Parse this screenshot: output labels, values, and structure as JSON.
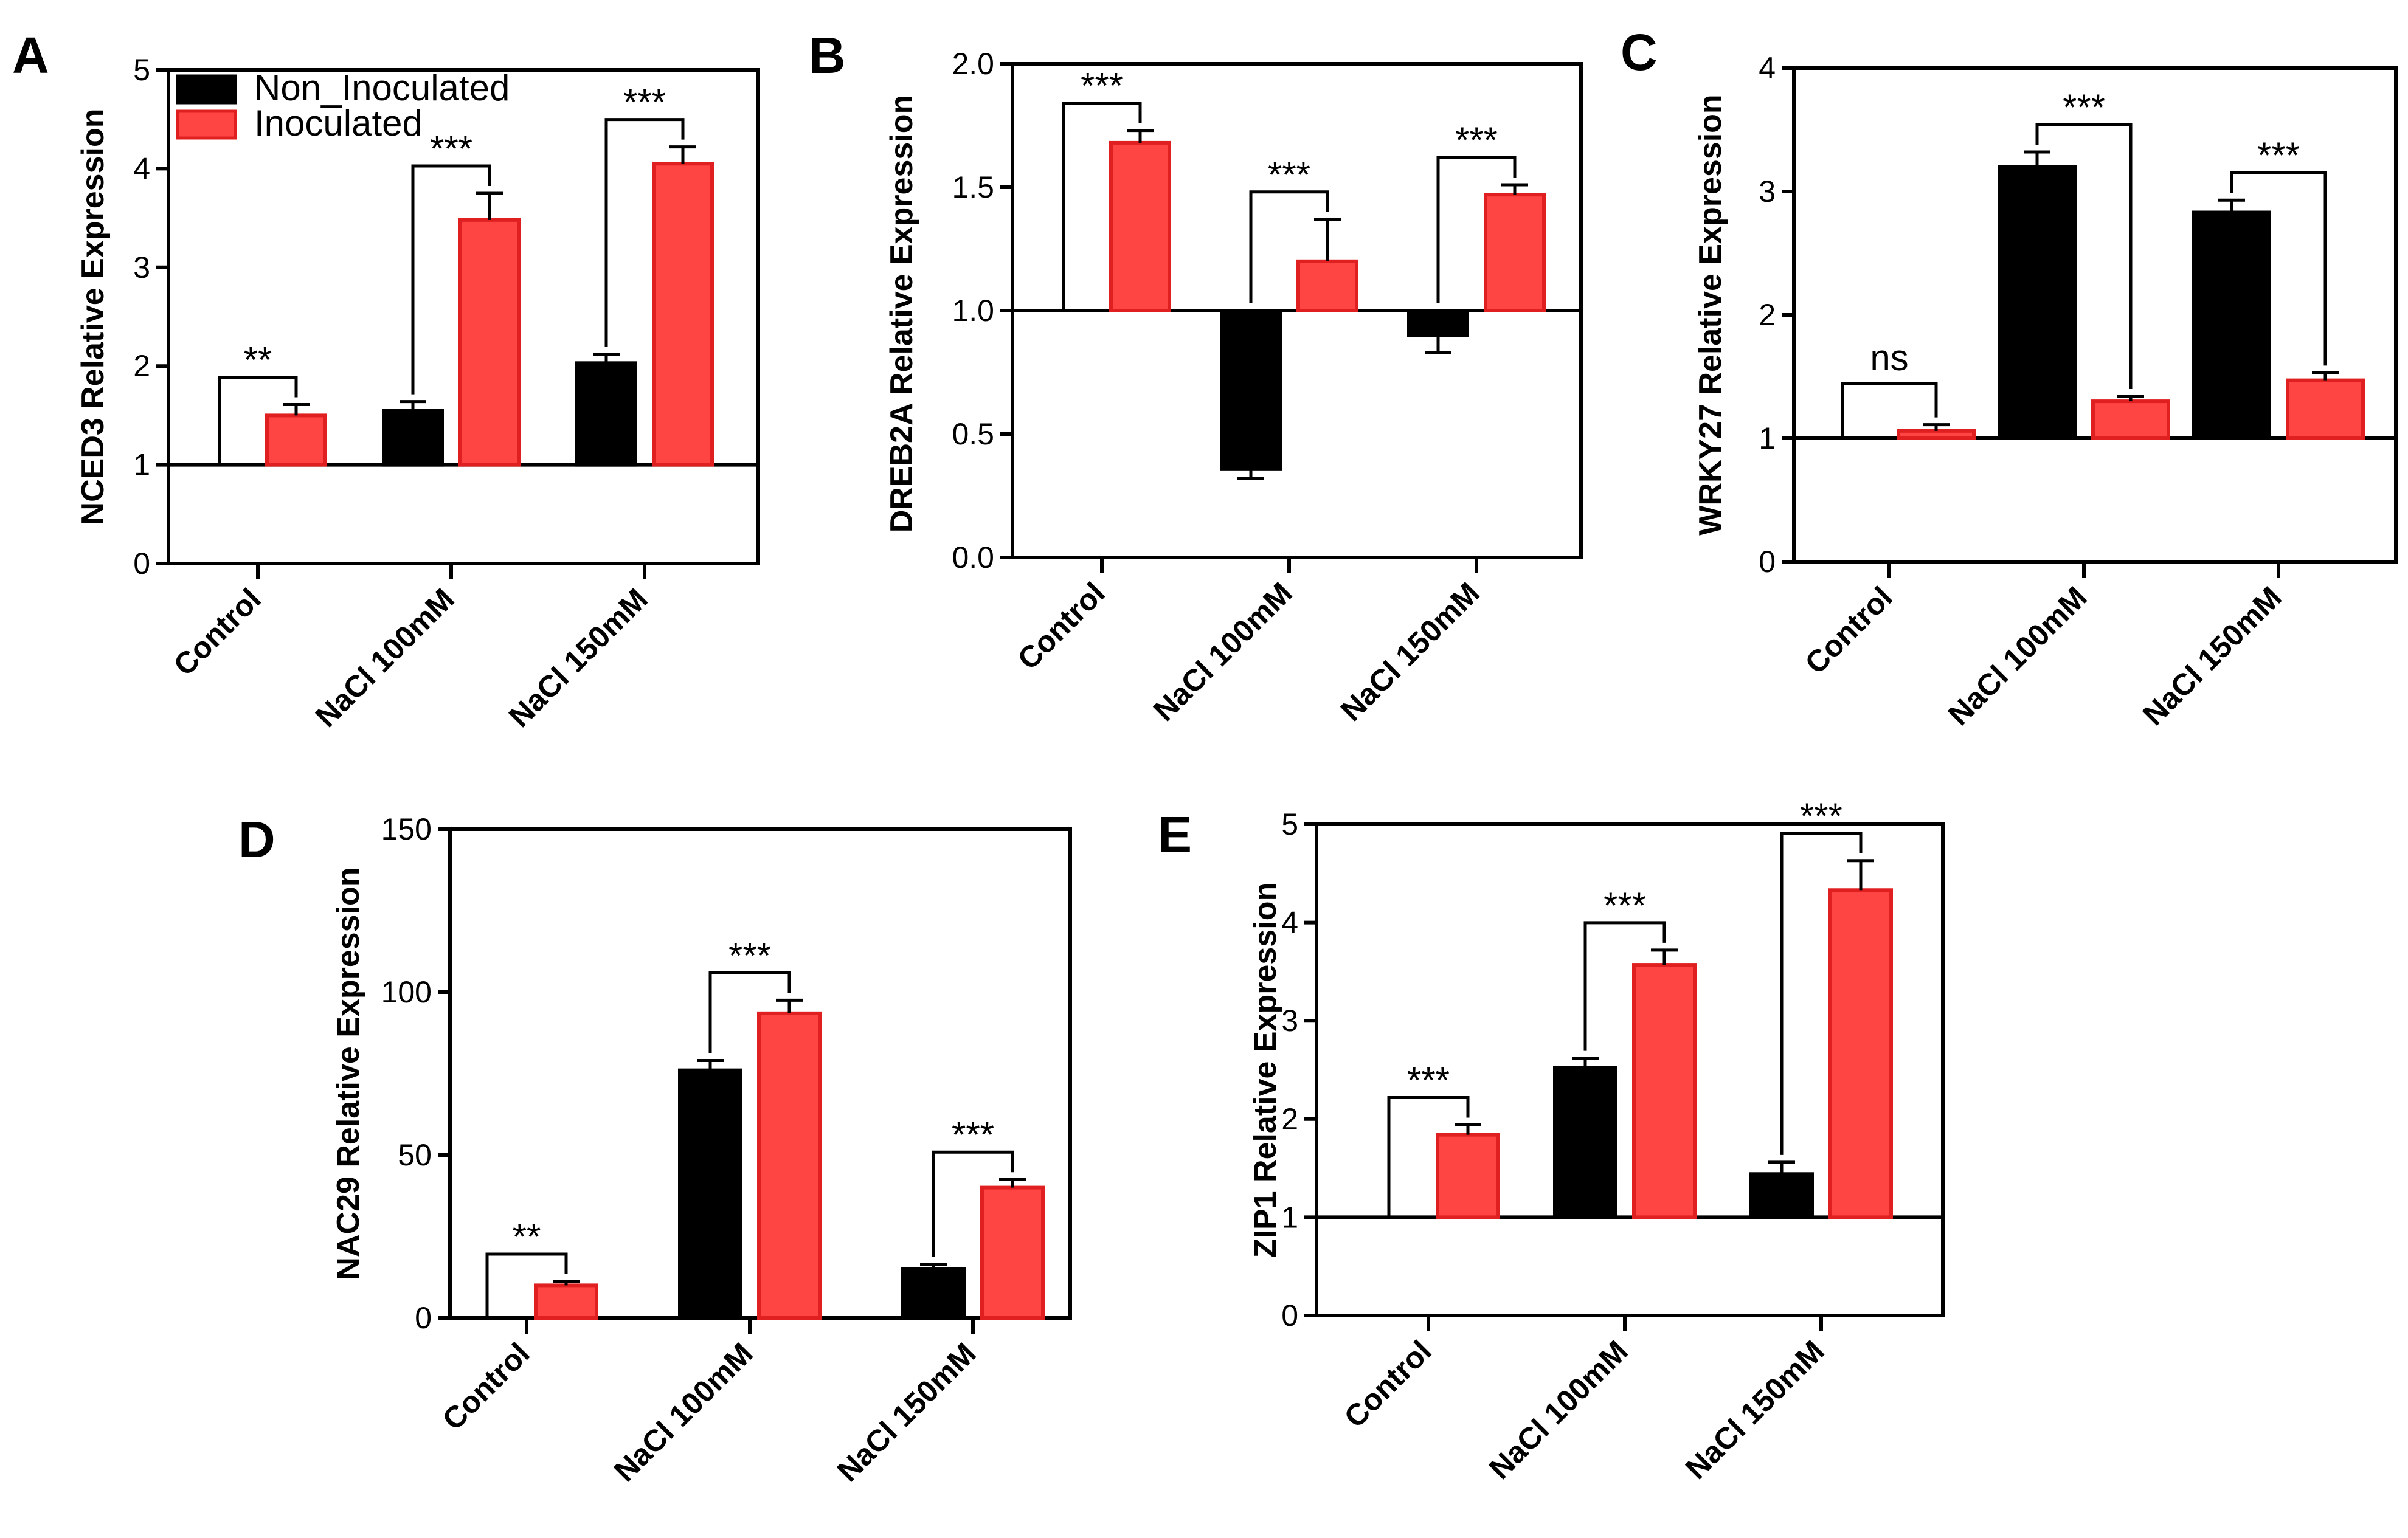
{
  "colors": {
    "non_inoculated_fill": "#000000",
    "inoculated_fill": "#ff4444",
    "inoculated_stroke": "#e02020",
    "axis": "#000000"
  },
  "legend": {
    "entries": [
      {
        "name": "Non_Inoculated",
        "color": "#000000"
      },
      {
        "name": "Inoculated",
        "color": "#ff4444"
      }
    ],
    "placement": "top-left of panel A"
  },
  "chart_data": [
    {
      "panel": "A",
      "type": "bar",
      "ylabel": "NCED3 Relative Expression",
      "ylim": [
        0,
        5
      ],
      "yticks": [
        "0",
        "1",
        "2",
        "3",
        "4",
        "5"
      ],
      "baseline": 1,
      "categories": [
        "Control",
        "NaCl 100mM",
        "NaCl 150mM"
      ],
      "series": [
        {
          "name": "Non_Inoculated",
          "values": [
            null,
            1.55,
            2.03
          ],
          "errors": [
            null,
            0.09,
            0.09
          ]
        },
        {
          "name": "Inoculated",
          "values": [
            1.5,
            3.48,
            4.05
          ],
          "errors": [
            0.11,
            0.27,
            0.17
          ]
        }
      ],
      "significance": [
        "**",
        "***",
        "***"
      ]
    },
    {
      "panel": "B",
      "type": "bar",
      "ylabel": "DREB2A  Relative Expression",
      "ylim": [
        0,
        2
      ],
      "yticks": [
        "0.0",
        "0.5",
        "1.0",
        "1.5",
        "2.0"
      ],
      "baseline": 1,
      "categories": [
        "Control",
        "NaCl 100mM",
        "NaCl 150mM"
      ],
      "series": [
        {
          "name": "Non_Inoculated",
          "values": [
            null,
            0.36,
            0.9
          ],
          "errors": [
            null,
            0.04,
            0.07
          ]
        },
        {
          "name": "Inoculated",
          "values": [
            1.68,
            1.2,
            1.47
          ],
          "errors": [
            0.05,
            0.17,
            0.04
          ]
        }
      ],
      "significance": [
        "***",
        "***",
        "***"
      ]
    },
    {
      "panel": "C",
      "type": "bar",
      "ylabel": "WRKY27 Relative Expression",
      "ylim": [
        0,
        4
      ],
      "yticks": [
        "0",
        "1",
        "2",
        "3",
        "4"
      ],
      "baseline": 1,
      "categories": [
        "Control",
        "NaCl 100mM",
        "NaCl 150mM"
      ],
      "series": [
        {
          "name": "Non_Inoculated",
          "values": [
            null,
            3.2,
            2.83
          ],
          "errors": [
            null,
            0.12,
            0.1
          ]
        },
        {
          "name": "Inoculated",
          "values": [
            1.06,
            1.3,
            1.47
          ],
          "errors": [
            0.05,
            0.04,
            0.06
          ]
        }
      ],
      "significance": [
        "ns",
        "***",
        "***"
      ]
    },
    {
      "panel": "D",
      "type": "bar",
      "ylabel": "NAC29 Relative Expression",
      "ylim": [
        0,
        150
      ],
      "yticks": [
        "0",
        "50",
        "100",
        "150"
      ],
      "baseline": 0,
      "categories": [
        "Control",
        "NaCl 100mM",
        "NaCl 150mM"
      ],
      "series": [
        {
          "name": "Non_Inoculated",
          "values": [
            null,
            76,
            15
          ],
          "errors": [
            null,
            3,
            1.5
          ]
        },
        {
          "name": "Inoculated",
          "values": [
            10,
            93.5,
            40
          ],
          "errors": [
            1.2,
            4,
            2.5
          ]
        }
      ],
      "significance": [
        "**",
        "***",
        "***"
      ]
    },
    {
      "panel": "E",
      "type": "bar",
      "ylabel": "ZIP1 Relative Expression",
      "ylim": [
        0,
        5
      ],
      "yticks": [
        "0",
        "1",
        "2",
        "3",
        "4",
        "5"
      ],
      "baseline": 1,
      "categories": [
        "Control",
        "NaCl 100mM",
        "NaCl 150mM"
      ],
      "series": [
        {
          "name": "Non_Inoculated",
          "values": [
            null,
            2.52,
            1.44
          ],
          "errors": [
            null,
            0.1,
            0.12
          ]
        },
        {
          "name": "Inoculated",
          "values": [
            1.84,
            3.57,
            4.33
          ],
          "errors": [
            0.1,
            0.15,
            0.3
          ]
        }
      ],
      "significance": [
        "***",
        "***",
        "***"
      ]
    }
  ]
}
